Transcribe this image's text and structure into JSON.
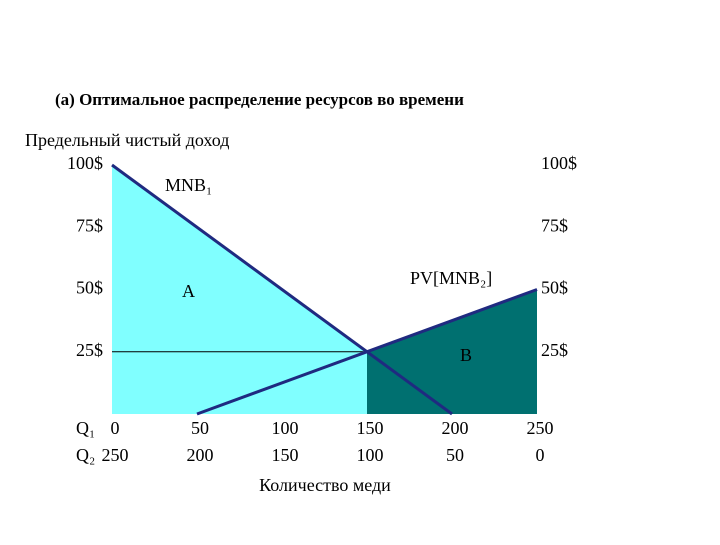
{
  "chart_data": {
    "type": "line",
    "title": "(а) Оптимальное распределение ресурсов во времени",
    "y_label": "Предельный  чистый доход",
    "x_label": "Количество меди",
    "x_row_labels": [
      "Q₁",
      "Q₂"
    ],
    "xlim": [
      0,
      250
    ],
    "xticks": [
      0,
      50,
      100,
      150,
      200,
      250
    ],
    "x2ticks": [
      250,
      200,
      150,
      100,
      50,
      0
    ],
    "ylim": [
      0,
      100
    ],
    "yticks": [
      {
        "value": 100,
        "label": "100$"
      },
      {
        "value": 75,
        "label": "75$"
      },
      {
        "value": 50,
        "label": "50$"
      },
      {
        "value": 25,
        "label": "25$"
      }
    ],
    "y2lim": [
      0,
      100
    ],
    "y2ticks": [
      {
        "value": 100,
        "label": "100$"
      },
      {
        "value": 75,
        "label": "75$"
      },
      {
        "value": 50,
        "label": "50$"
      },
      {
        "value": 25,
        "label": "25$"
      }
    ],
    "series": [
      {
        "name": "MNB₁",
        "color": "#1f2a80",
        "x": [
          0,
          200
        ],
        "values": [
          100,
          0
        ]
      },
      {
        "name": "PV[MNB₂]",
        "color": "#1f2a80",
        "x": [
          50,
          250
        ],
        "values": [
          0,
          50
        ]
      }
    ],
    "areas": [
      {
        "label": "A",
        "color": "#80ffff"
      },
      {
        "label": "B",
        "color": "#007070"
      }
    ]
  }
}
